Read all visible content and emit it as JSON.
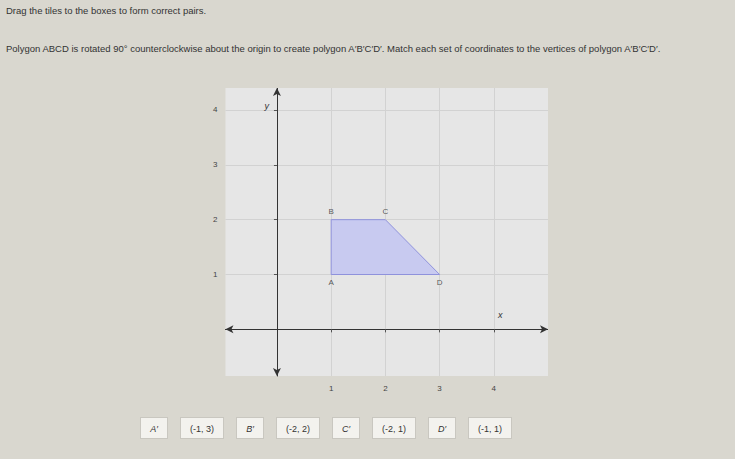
{
  "instructions": "Drag the tiles to the boxes to form correct pairs.",
  "question": "Polygon ABCD is rotated 90° counterclockwise about the origin to create polygon A′B′C′D′. Match each set of coordinates to the vertices of polygon A′B′C′D′.",
  "chart_data": {
    "type": "polygon",
    "vertices": [
      {
        "label": "A",
        "x": 1,
        "y": 1
      },
      {
        "label": "B",
        "x": 1,
        "y": 2
      },
      {
        "label": "C",
        "x": 2,
        "y": 2
      },
      {
        "label": "D",
        "x": 3,
        "y": 1
      }
    ],
    "xlabel": "x",
    "ylabel": "y",
    "xlim": [
      -0.95,
      5
    ],
    "ylim": [
      -0.85,
      4.4
    ],
    "xticks": [
      1,
      2,
      3,
      4
    ],
    "yticks": [
      1,
      2,
      3,
      4
    ],
    "grid": true,
    "color": "#c8caf0"
  },
  "tiles": [
    "A′",
    "(-1, 3)",
    "B′",
    "(-2, 2)",
    "C′",
    "(-2, 1)",
    "D′",
    "(-1, 1)"
  ]
}
